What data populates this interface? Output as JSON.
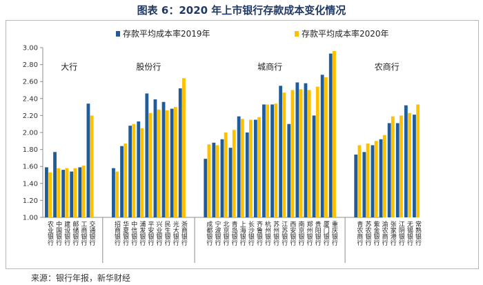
{
  "title": "图表 6：2020 年上市银行存款成本变化情况",
  "source": "来源：银行年报，新华财经",
  "chart_data": {
    "type": "bar",
    "ylim": [
      1.0,
      3.0
    ],
    "yticks": [
      "1.00",
      "1.20",
      "1.40",
      "1.60",
      "1.80",
      "2.00",
      "2.20",
      "2.40",
      "2.60",
      "2.80",
      "3.00"
    ],
    "series": [
      {
        "name": "存款平均成本率2019年",
        "color": "#1f5c99"
      },
      {
        "name": "存款平均成本率2020年",
        "color": "#ffc000"
      }
    ],
    "groups": [
      {
        "label": "大行",
        "banks": [
          {
            "name": "农业银行",
            "v2019": 1.59,
            "v2020": 1.53
          },
          {
            "name": "中国银行",
            "v2019": 1.77,
            "v2020": 1.58
          },
          {
            "name": "建设银行",
            "v2019": 1.56,
            "v2020": 1.58
          },
          {
            "name": "邮储银行",
            "v2019": 1.54,
            "v2020": 1.58
          },
          {
            "name": "工商银行",
            "v2019": 1.59,
            "v2020": 1.61
          },
          {
            "name": "交通银行",
            "v2019": 2.34,
            "v2020": 2.2
          }
        ]
      },
      {
        "label": "股份行",
        "banks": [
          {
            "name": "招商银行",
            "v2019": 1.58,
            "v2020": 1.54
          },
          {
            "name": "华夏银行",
            "v2019": 1.84,
            "v2020": 1.87
          },
          {
            "name": "中信银行",
            "v2019": 2.08,
            "v2020": 2.1
          },
          {
            "name": "浦发银行",
            "v2019": 2.13,
            "v2020": 2.05
          },
          {
            "name": "平安银行",
            "v2019": 2.46,
            "v2020": 2.23
          },
          {
            "name": "兴业银行",
            "v2019": 2.39,
            "v2020": 2.27
          },
          {
            "name": "民生银行",
            "v2019": 2.36,
            "v2020": 2.26
          },
          {
            "name": "光大银行",
            "v2019": 2.28,
            "v2020": 2.3
          },
          {
            "name": "浙商银行",
            "v2019": 2.52,
            "v2020": 2.64
          }
        ]
      },
      {
        "label": "城商行",
        "banks": [
          {
            "name": "成都银行",
            "v2019": 1.69,
            "v2020": 1.86
          },
          {
            "name": "宁波银行",
            "v2019": 1.88,
            "v2020": 1.85
          },
          {
            "name": "北京银行",
            "v2019": 1.92,
            "v2020": 2.0
          },
          {
            "name": "青岛银行",
            "v2019": 1.82,
            "v2020": 2.03
          },
          {
            "name": "上海银行",
            "v2019": 2.19,
            "v2020": 2.16
          },
          {
            "name": "长沙银行",
            "v2019": 2.0,
            "v2020": 2.15
          },
          {
            "name": "齐鲁银行",
            "v2019": 2.15,
            "v2020": 2.18
          },
          {
            "name": "杭州银行",
            "v2019": 2.33,
            "v2020": 2.33
          },
          {
            "name": "苏州银行",
            "v2019": 2.33,
            "v2020": 2.34
          },
          {
            "name": "江苏银行",
            "v2019": 2.55,
            "v2020": 2.47
          },
          {
            "name": "西安银行",
            "v2019": 2.1,
            "v2020": 2.5
          },
          {
            "name": "南京银行",
            "v2019": 2.59,
            "v2020": 2.51
          },
          {
            "name": "郑州银行",
            "v2019": 2.58,
            "v2020": 2.5
          },
          {
            "name": "贵阳银行",
            "v2019": 2.2,
            "v2020": 2.54
          },
          {
            "name": "厦门银行",
            "v2019": 2.68,
            "v2020": 2.65
          },
          {
            "name": "重庆银行",
            "v2019": 2.93,
            "v2020": 2.96
          }
        ]
      },
      {
        "label": "农商行",
        "banks": [
          {
            "name": "青农商行",
            "v2019": 1.74,
            "v2020": 1.85
          },
          {
            "name": "苏农银行",
            "v2019": 1.77,
            "v2020": 1.87
          },
          {
            "name": "紫金银行",
            "v2019": 1.85,
            "v2020": 1.9
          },
          {
            "name": "渝农商行",
            "v2019": 1.92,
            "v2020": 1.97
          },
          {
            "name": "张家港行",
            "v2019": 2.11,
            "v2020": 2.19
          },
          {
            "name": "江阴银行",
            "v2019": 2.11,
            "v2020": 2.2
          },
          {
            "name": "无锡银行",
            "v2019": 2.32,
            "v2020": 2.23
          },
          {
            "name": "常熟银行",
            "v2019": 2.21,
            "v2020": 2.33
          }
        ]
      }
    ]
  }
}
